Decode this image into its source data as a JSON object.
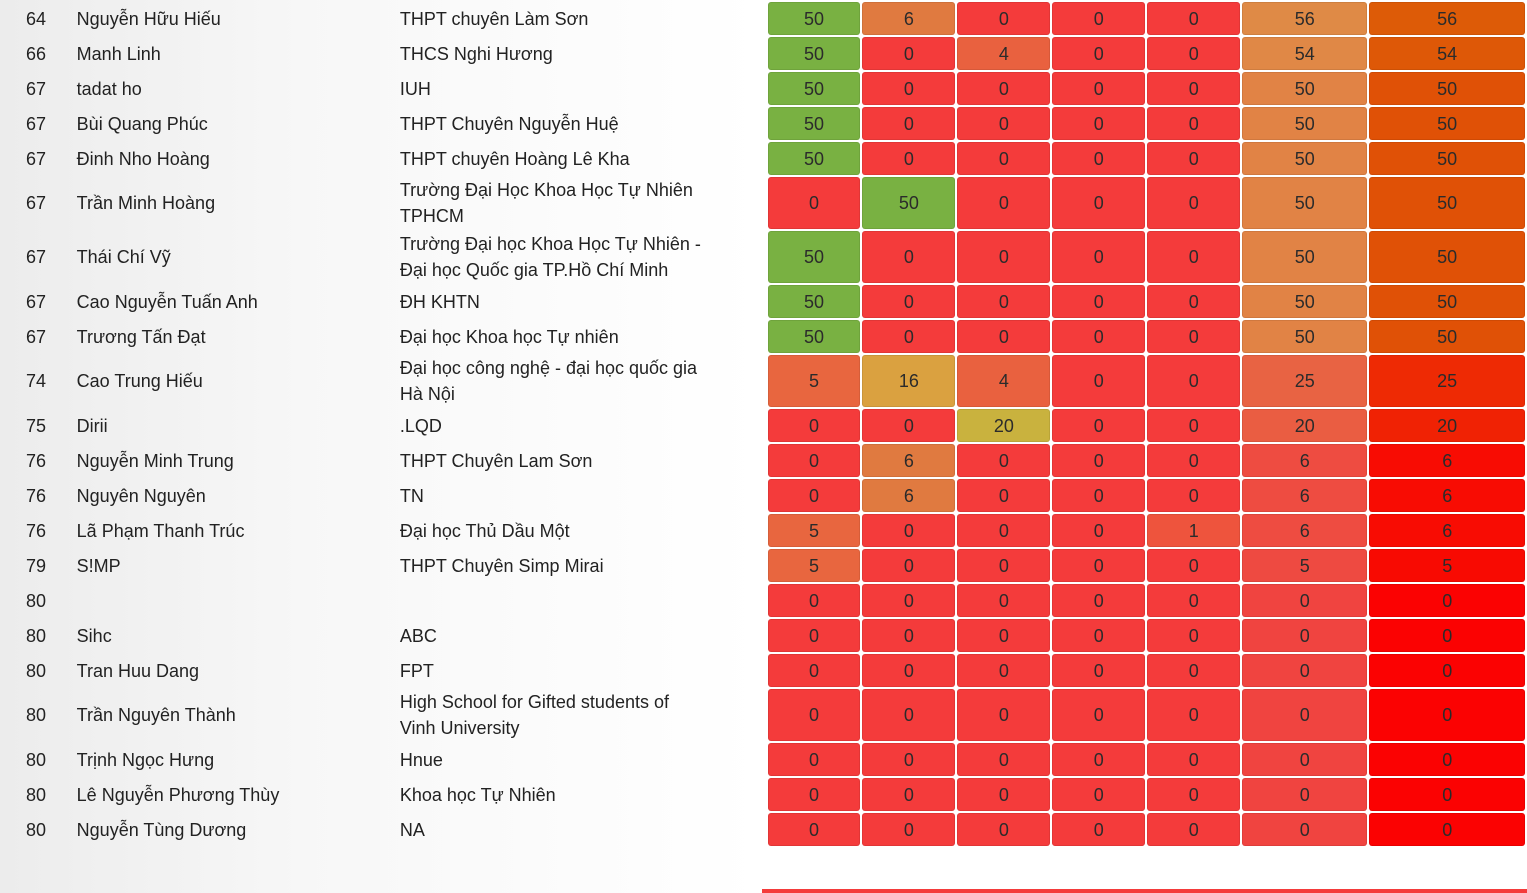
{
  "scoreboard": {
    "rows": [
      {
        "rank": "64",
        "name": "Nguyễn Hữu Hiếu",
        "school": "THPT chuyên Làm Sơn",
        "scores": [
          "50",
          "6",
          "0",
          "0",
          "0"
        ],
        "sum": "56",
        "total": "56"
      },
      {
        "rank": "66",
        "name": "Manh Linh",
        "school": "THCS Nghi Hương",
        "scores": [
          "50",
          "0",
          "4",
          "0",
          "0"
        ],
        "sum": "54",
        "total": "54"
      },
      {
        "rank": "67",
        "name": "tadat ho",
        "school": "IUH",
        "scores": [
          "50",
          "0",
          "0",
          "0",
          "0"
        ],
        "sum": "50",
        "total": "50"
      },
      {
        "rank": "67",
        "name": "Bùi Quang Phúc",
        "school": "THPT Chuyên Nguyễn Huệ",
        "scores": [
          "50",
          "0",
          "0",
          "0",
          "0"
        ],
        "sum": "50",
        "total": "50"
      },
      {
        "rank": "67",
        "name": "Đinh Nho Hoàng",
        "school": "THPT chuyên Hoàng Lê Kha",
        "scores": [
          "50",
          "0",
          "0",
          "0",
          "0"
        ],
        "sum": "50",
        "total": "50"
      },
      {
        "rank": "67",
        "name": "Trần Minh Hoàng",
        "school": "Trường Đại Học Khoa Học Tự Nhiên TPHCM",
        "scores": [
          "0",
          "50",
          "0",
          "0",
          "0"
        ],
        "sum": "50",
        "total": "50"
      },
      {
        "rank": "67",
        "name": "Thái Chí Vỹ",
        "school": "Trường Đại học Khoa Học Tự Nhiên - Đại học Quốc gia TP.Hồ Chí Minh",
        "scores": [
          "50",
          "0",
          "0",
          "0",
          "0"
        ],
        "sum": "50",
        "total": "50"
      },
      {
        "rank": "67",
        "name": "Cao Nguyễn Tuấn Anh",
        "school": "ĐH KHTN",
        "scores": [
          "50",
          "0",
          "0",
          "0",
          "0"
        ],
        "sum": "50",
        "total": "50"
      },
      {
        "rank": "67",
        "name": "Trương Tấn Đạt",
        "school": "Đại học Khoa học Tự nhiên",
        "scores": [
          "50",
          "0",
          "0",
          "0",
          "0"
        ],
        "sum": "50",
        "total": "50"
      },
      {
        "rank": "74",
        "name": "Cao Trung Hiếu",
        "school": "Đại học công nghệ - đại học quốc gia Hà Nội",
        "scores": [
          "5",
          "16",
          "4",
          "0",
          "0"
        ],
        "sum": "25",
        "total": "25"
      },
      {
        "rank": "75",
        "name": "Dirii",
        "school": ".LQD",
        "scores": [
          "0",
          "0",
          "20",
          "0",
          "0"
        ],
        "sum": "20",
        "total": "20"
      },
      {
        "rank": "76",
        "name": "Nguyễn Minh Trung",
        "school": "THPT Chuyên Lam Sơn",
        "scores": [
          "0",
          "6",
          "0",
          "0",
          "0"
        ],
        "sum": "6",
        "total": "6"
      },
      {
        "rank": "76",
        "name": "Nguyên Nguyên",
        "school": "TN",
        "scores": [
          "0",
          "6",
          "0",
          "0",
          "0"
        ],
        "sum": "6",
        "total": "6"
      },
      {
        "rank": "76",
        "name": "Lã Phạm Thanh Trúc",
        "school": "Đại học Thủ Dầu Một",
        "scores": [
          "5",
          "0",
          "0",
          "0",
          "1"
        ],
        "sum": "6",
        "total": "6"
      },
      {
        "rank": "79",
        "name": "S!MP",
        "school": "THPT Chuyên Simp Mirai",
        "scores": [
          "5",
          "0",
          "0",
          "0",
          "0"
        ],
        "sum": "5",
        "total": "5"
      },
      {
        "rank": "80",
        "name": "",
        "school": "",
        "scores": [
          "0",
          "0",
          "0",
          "0",
          "0"
        ],
        "sum": "0",
        "total": "0"
      },
      {
        "rank": "80",
        "name": "Sihc",
        "school": "ABC",
        "scores": [
          "0",
          "0",
          "0",
          "0",
          "0"
        ],
        "sum": "0",
        "total": "0"
      },
      {
        "rank": "80",
        "name": "Tran Huu Dang",
        "school": "FPT",
        "scores": [
          "0",
          "0",
          "0",
          "0",
          "0"
        ],
        "sum": "0",
        "total": "0"
      },
      {
        "rank": "80",
        "name": "Trần Nguyên Thành",
        "school": "High School for Gifted students of Vinh University",
        "scores": [
          "0",
          "0",
          "0",
          "0",
          "0"
        ],
        "sum": "0",
        "total": "0"
      },
      {
        "rank": "80",
        "name": "Trịnh Ngọc Hưng",
        "school": "Hnue",
        "scores": [
          "0",
          "0",
          "0",
          "0",
          "0"
        ],
        "sum": "0",
        "total": "0"
      },
      {
        "rank": "80",
        "name": "Lê Nguyễn Phương Thùy",
        "school": "Khoa học Tự Nhiên",
        "scores": [
          "0",
          "0",
          "0",
          "0",
          "0"
        ],
        "sum": "0",
        "total": "0"
      },
      {
        "rank": "80",
        "name": "Nguyễn Tùng Dương",
        "school": "NA",
        "scores": [
          "0",
          "0",
          "0",
          "0",
          "0"
        ],
        "sum": "0",
        "total": "0"
      }
    ]
  },
  "colors": {
    "zero": "#f43b3b",
    "full": "#79b142",
    "total_max": "#dd5b07",
    "total_zero": "#fb0202"
  }
}
